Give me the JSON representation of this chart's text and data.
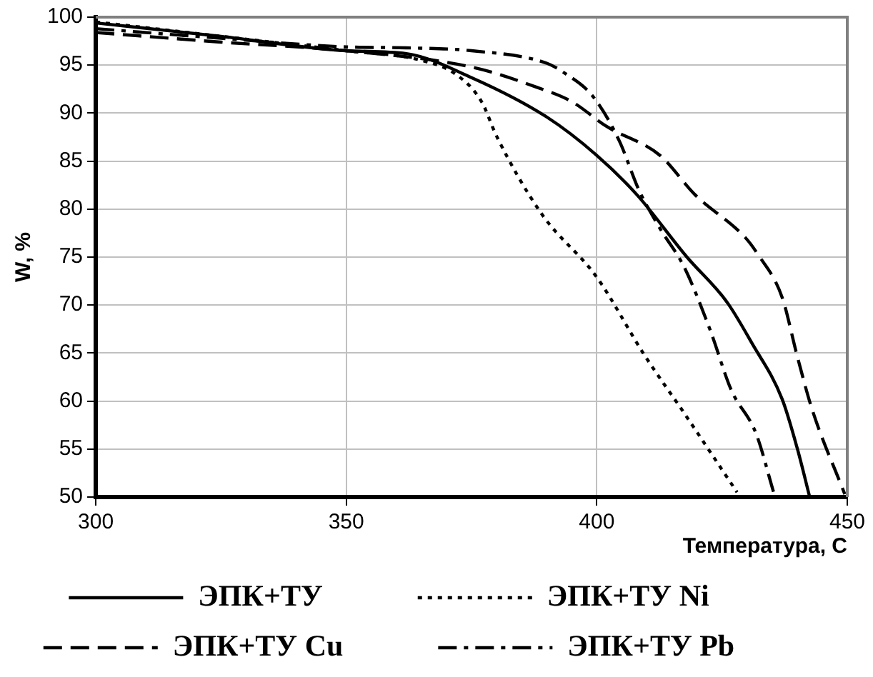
{
  "chart_data": {
    "type": "line",
    "xlabel": "Температура, С",
    "ylabel": "W, %",
    "xlim": [
      300,
      450
    ],
    "xticks": [
      300,
      350,
      400,
      450
    ],
    "ylim": [
      50,
      100
    ],
    "yticks": [
      50,
      55,
      60,
      65,
      70,
      75,
      80,
      85,
      90,
      95,
      100
    ],
    "grid": true,
    "legend": "bottom",
    "marker": "none",
    "series": [
      {
        "name": "ЭПК+ТУ",
        "color": "#000000",
        "line_style": "solid",
        "x": [
          300,
          325,
          350,
          362,
          375,
          390,
          400,
          408,
          418,
          426,
          431,
          437,
          440,
          442.5
        ],
        "values": [
          99.4,
          98,
          96.5,
          96.2,
          93.7,
          89.6,
          85.6,
          81.5,
          75,
          70.3,
          66,
          60.2,
          55.1,
          50
        ]
      },
      {
        "name": "ЭПК+ТУ Ni",
        "color": "#000000",
        "line_style": "dotted",
        "x": [
          300,
          325,
          350,
          365,
          372,
          377,
          380,
          389,
          400,
          409.5,
          417.5,
          428
        ],
        "values": [
          99.5,
          98,
          96.5,
          95.5,
          94,
          91.2,
          87.6,
          79.5,
          72.9,
          64.8,
          58.7,
          50.5
        ]
      },
      {
        "name": "ЭПК+ТУ Cu",
        "color": "#000000",
        "line_style": "dashed",
        "x": [
          300,
          325,
          350,
          375,
          388,
          395,
          402,
          412.6,
          419.6,
          429.7,
          432,
          437,
          440,
          443,
          449.5
        ],
        "values": [
          98.4,
          97.4,
          96.5,
          94.8,
          92.7,
          91.2,
          88.6,
          85.6,
          81.5,
          77,
          75.4,
          70.8,
          64.7,
          59.1,
          50.3
        ]
      },
      {
        "name": "ЭПК+ТУ Pb",
        "color": "#000000",
        "line_style": "dashdot",
        "x": [
          300,
          325,
          350,
          362,
          375,
          390,
          393.5,
          399.3,
          404.5,
          408.4,
          412.6,
          417.5,
          422.7,
          426.8,
          431.8,
          435.3
        ],
        "values": [
          98.8,
          97.8,
          96.9,
          96.8,
          96.5,
          95.2,
          94.2,
          91.7,
          87.1,
          82,
          78,
          73.9,
          67.3,
          61.2,
          56.6,
          50.5
        ]
      }
    ]
  }
}
